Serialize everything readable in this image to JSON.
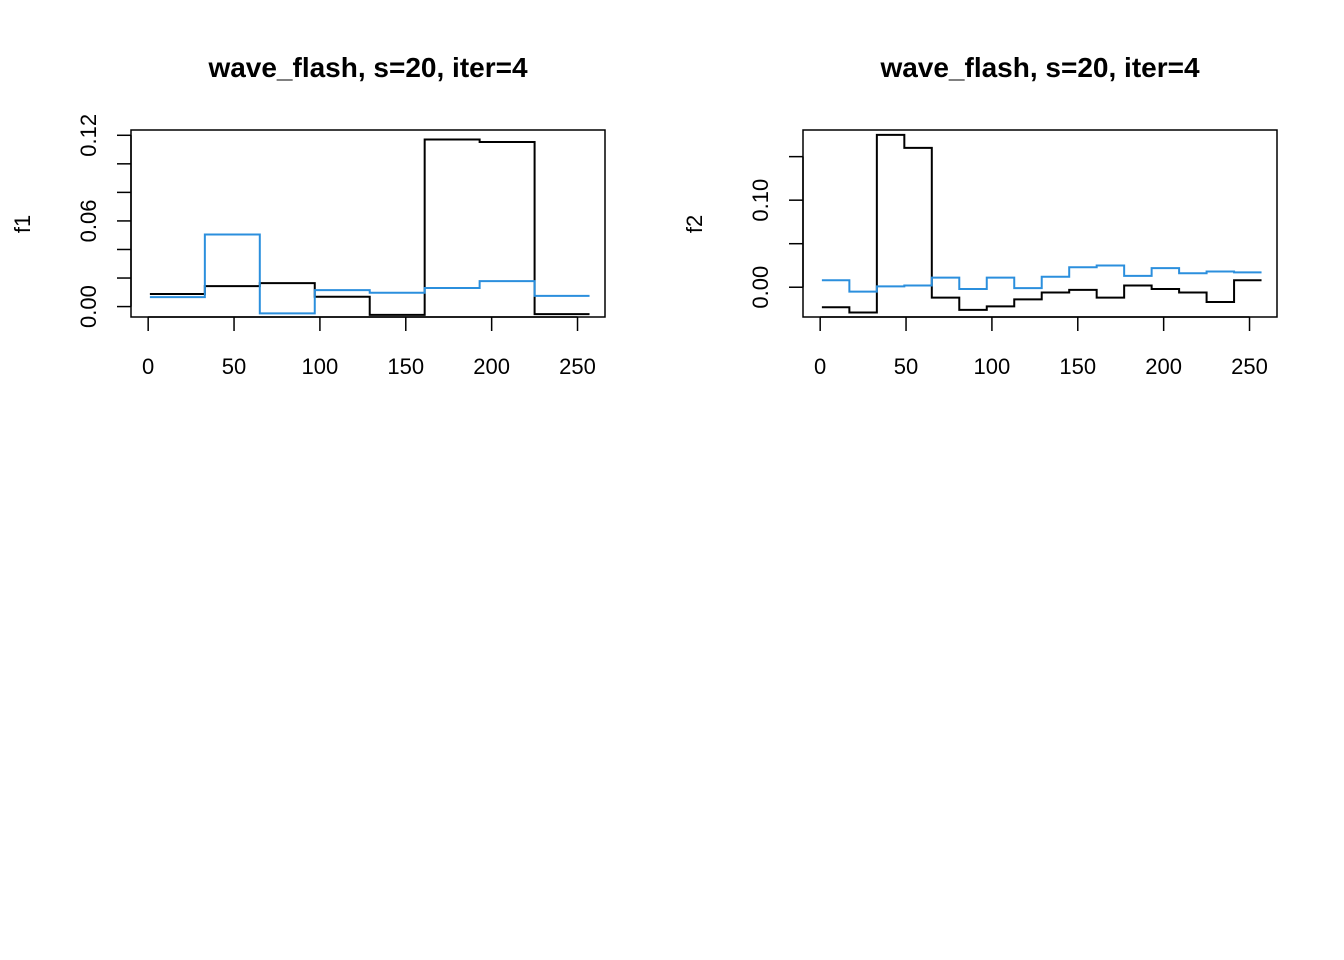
{
  "chart_data": [
    {
      "type": "line",
      "title": "wave_flash, s=20, iter=4",
      "xlabel": "",
      "ylabel": "f1",
      "xlim": [
        -10,
        266
      ],
      "ylim": [
        -0.0073,
        0.1237
      ],
      "xticks": [
        0,
        50,
        100,
        150,
        200,
        250
      ],
      "xtick_labels": [
        "0",
        "50",
        "100",
        "150",
        "200",
        "250"
      ],
      "yticks": [
        0.0,
        0.02,
        0.04,
        0.06,
        0.08,
        0.1,
        0.12
      ],
      "ytick_labels": [
        "0.00",
        "",
        "",
        "0.06",
        "",
        "",
        "0.12"
      ],
      "series": [
        {
          "color": "#000000",
          "x": [
            1,
            33,
            33,
            65,
            65,
            97,
            97,
            129,
            129,
            161,
            161,
            193,
            193,
            225,
            225,
            257
          ],
          "y": [
            0.0088,
            0.0088,
            0.0143,
            0.0143,
            0.0164,
            0.0164,
            0.0069,
            0.0069,
            -0.0058,
            -0.0058,
            0.117,
            0.117,
            0.1153,
            0.1153,
            -0.0053,
            -0.0053
          ]
        },
        {
          "color": "#2b8fdd",
          "x": [
            1,
            33,
            33,
            65,
            65,
            97,
            97,
            129,
            129,
            161,
            161,
            193,
            193,
            225,
            225,
            257
          ],
          "y": [
            0.0066,
            0.0066,
            0.0505,
            0.0505,
            -0.0048,
            -0.0048,
            0.0115,
            0.0115,
            0.0097,
            0.0097,
            0.013,
            0.013,
            0.0178,
            0.0178,
            0.0075,
            0.0075
          ]
        }
      ]
    },
    {
      "type": "line",
      "title": "wave_flash, s=20, iter=4",
      "xlabel": "",
      "ylabel": "f2",
      "xlim": [
        -10,
        266
      ],
      "ylim": [
        -0.0342,
        0.1806
      ],
      "xticks": [
        0,
        50,
        100,
        150,
        200,
        250
      ],
      "xtick_labels": [
        "0",
        "50",
        "100",
        "150",
        "200",
        "250"
      ],
      "yticks": [
        0.0,
        0.05,
        0.1,
        0.15
      ],
      "ytick_labels": [
        "0.00",
        "",
        "0.10",
        ""
      ],
      "series": [
        {
          "color": "#000000",
          "x": [
            1,
            17,
            17,
            33,
            33,
            49,
            49,
            65,
            65,
            81,
            81,
            97,
            97,
            113,
            113,
            129,
            129,
            145,
            145,
            161,
            161,
            177,
            177,
            193,
            193,
            209,
            209,
            225,
            225,
            241,
            241,
            257
          ],
          "y": [
            -0.023,
            -0.023,
            -0.029,
            -0.029,
            0.175,
            0.175,
            0.16,
            0.16,
            -0.012,
            -0.012,
            -0.026,
            -0.026,
            -0.022,
            -0.022,
            -0.014,
            -0.014,
            -0.006,
            -0.006,
            -0.003,
            -0.003,
            -0.012,
            -0.012,
            0.002,
            0.002,
            -0.002,
            -0.002,
            -0.006,
            -0.006,
            -0.017,
            -0.017,
            0.008,
            0.008
          ]
        },
        {
          "color": "#2b8fdd",
          "x": [
            1,
            17,
            17,
            33,
            33,
            49,
            49,
            65,
            65,
            81,
            81,
            97,
            97,
            113,
            113,
            129,
            129,
            145,
            145,
            161,
            161,
            177,
            177,
            193,
            193,
            209,
            209,
            225,
            225,
            241,
            241,
            257
          ],
          "y": [
            0.008,
            0.008,
            -0.005,
            -0.005,
            0.001,
            0.001,
            0.002,
            0.002,
            0.011,
            0.011,
            -0.002,
            -0.002,
            0.011,
            0.011,
            -0.001,
            -0.001,
            0.012,
            0.012,
            0.023,
            0.023,
            0.025,
            0.025,
            0.013,
            0.013,
            0.022,
            0.022,
            0.016,
            0.016,
            0.018,
            0.018,
            0.017,
            0.017
          ]
        }
      ]
    }
  ]
}
